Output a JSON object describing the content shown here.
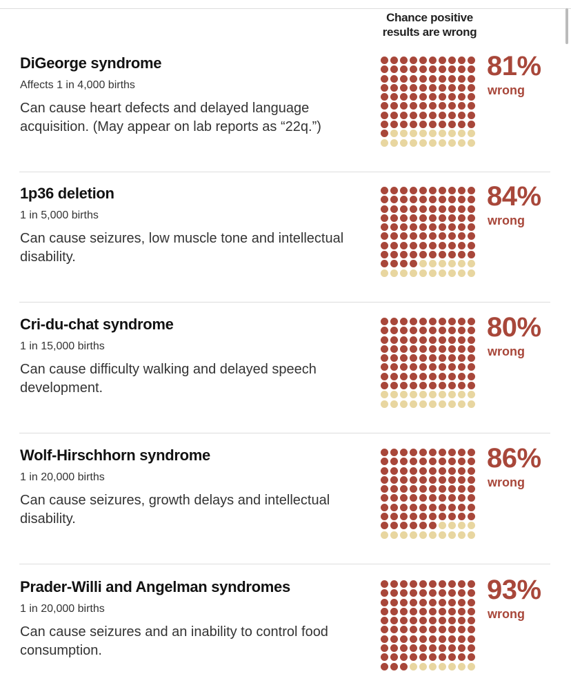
{
  "header": {
    "column_title_line1": "Chance positive",
    "column_title_line2": "results are wrong"
  },
  "colors": {
    "wrong": "#a8473a",
    "right": "#e8d6a0"
  },
  "chart_data": {
    "type": "waffle",
    "title": "Chance positive results are wrong",
    "grid": [
      10,
      10
    ],
    "rows": [
      {
        "name": "DiGeorge syndrome",
        "prevalence": "Affects 1 in 4,000 births",
        "description": "Can cause heart defects and delayed language acquisition. (May appear on lab reports as “22q.”)",
        "value": 81,
        "label": "81%",
        "unit_label": "wrong"
      },
      {
        "name": "1p36 deletion",
        "prevalence": "1 in 5,000 births",
        "description": "Can cause seizures, low muscle tone and intellectual disability.",
        "value": 84,
        "label": "84%",
        "unit_label": "wrong"
      },
      {
        "name": "Cri-du-chat syndrome",
        "prevalence": "1 in 15,000 births",
        "description": "Can cause difficulty walking and delayed speech development.",
        "value": 80,
        "label": "80%",
        "unit_label": "wrong"
      },
      {
        "name": "Wolf-Hirschhorn syndrome",
        "prevalence": "1 in 20,000 births",
        "description": "Can cause seizures, growth delays and intellectual disability.",
        "value": 86,
        "label": "86%",
        "unit_label": "wrong"
      },
      {
        "name": "Prader-Willi and Angelman syndromes",
        "prevalence": "1 in 20,000 births",
        "description": "Can cause seizures and an inability to control food consumption.",
        "value": 93,
        "label": "93%",
        "unit_label": "wrong"
      }
    ]
  }
}
